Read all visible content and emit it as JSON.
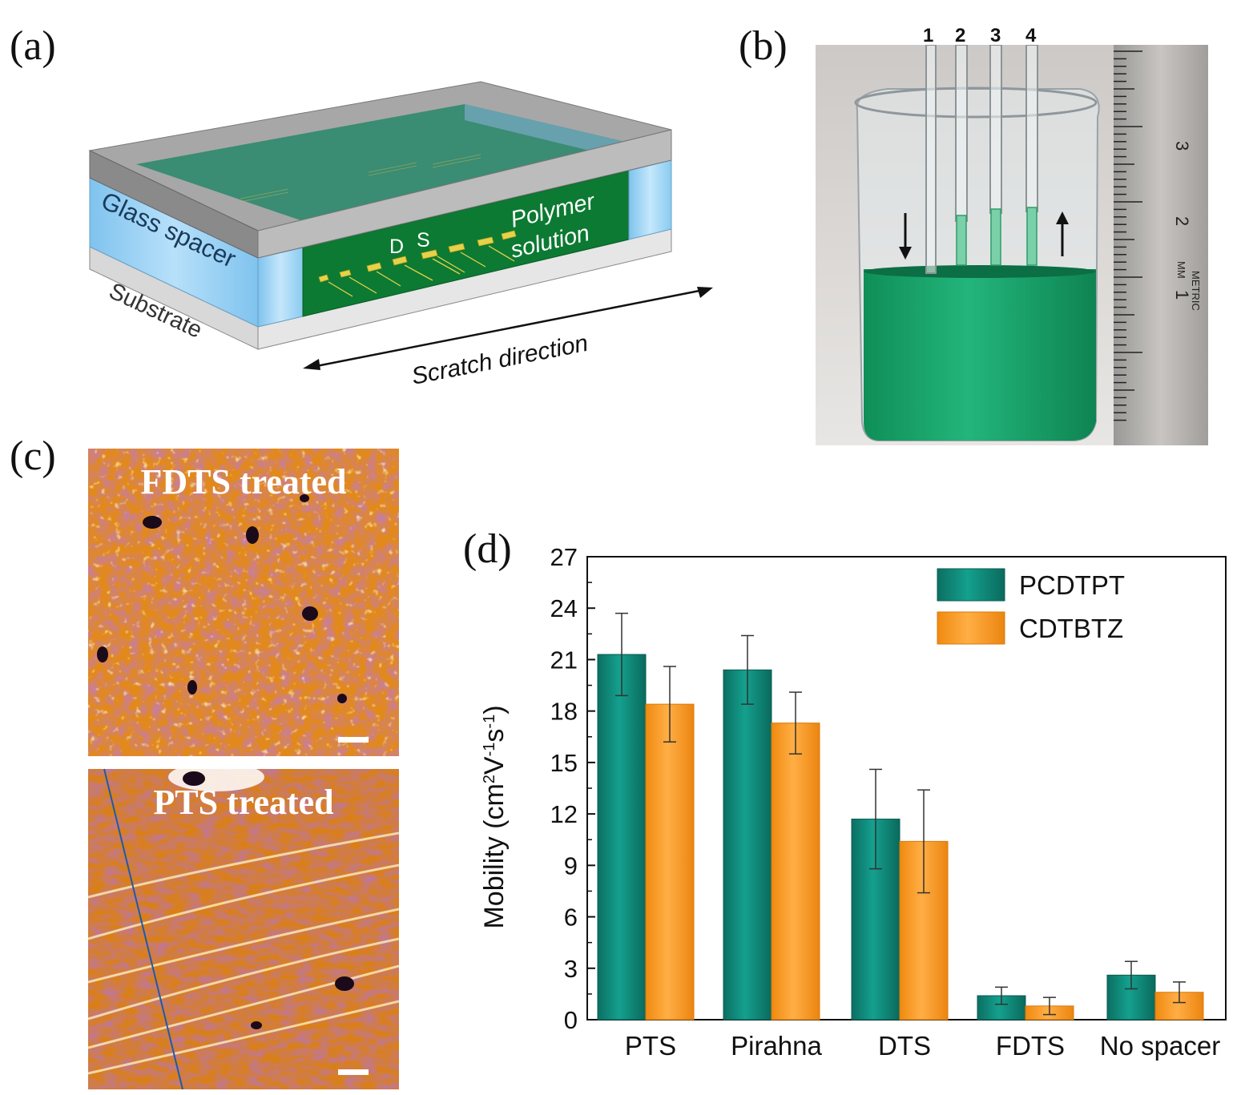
{
  "panels": {
    "a": {
      "label": "(a)",
      "glass_spacer": "Glass spacer",
      "substrate": "Substrate",
      "drain": "D",
      "source": "S",
      "polymer_line1": "Polymer",
      "polymer_line2": "solution",
      "scratch_direction": "Scratch direction"
    },
    "b": {
      "label": "(b)",
      "tube_numbers": [
        "1",
        "2",
        "3",
        "4"
      ],
      "ruler_ticks": [
        "1",
        "2",
        "3"
      ],
      "ruler_mm": "MM",
      "ruler_metric": "METRIC"
    },
    "c": {
      "label": "(c)",
      "top_caption": "FDTS treated",
      "bottom_caption": "PTS treated"
    },
    "d": {
      "label": "(d)"
    }
  },
  "colors": {
    "teal": "#0f8c7c",
    "orange": "#f7941d",
    "solution_green": "#1fae74",
    "afm_base": "#e2891c"
  },
  "chart_data": {
    "type": "bar",
    "categories": [
      "PTS",
      "Pirahna",
      "DTS",
      "FDTS",
      "No spacer"
    ],
    "series": [
      {
        "name": "PCDTPT",
        "values": [
          21.3,
          20.4,
          11.7,
          1.4,
          2.6
        ],
        "errors": [
          2.4,
          2.0,
          2.9,
          0.5,
          0.8
        ]
      },
      {
        "name": "CDTBTZ",
        "values": [
          18.4,
          17.3,
          10.4,
          0.8,
          1.6
        ],
        "errors": [
          2.2,
          1.8,
          3.0,
          0.5,
          0.6
        ]
      }
    ],
    "ylabel": "Mobility (cm²V⁻¹s⁻¹)",
    "ylabel_parts": {
      "base": "Mobility (cm",
      "sup1": "2",
      "mid1": "V",
      "sup2": "-1",
      "mid2": "s",
      "sup3": "-1",
      "end": ")"
    },
    "ylim": [
      0,
      27
    ],
    "yticks": [
      "0",
      "3",
      "6",
      "9",
      "12",
      "15",
      "18",
      "21",
      "24",
      "27"
    ],
    "legend": "top-right"
  }
}
